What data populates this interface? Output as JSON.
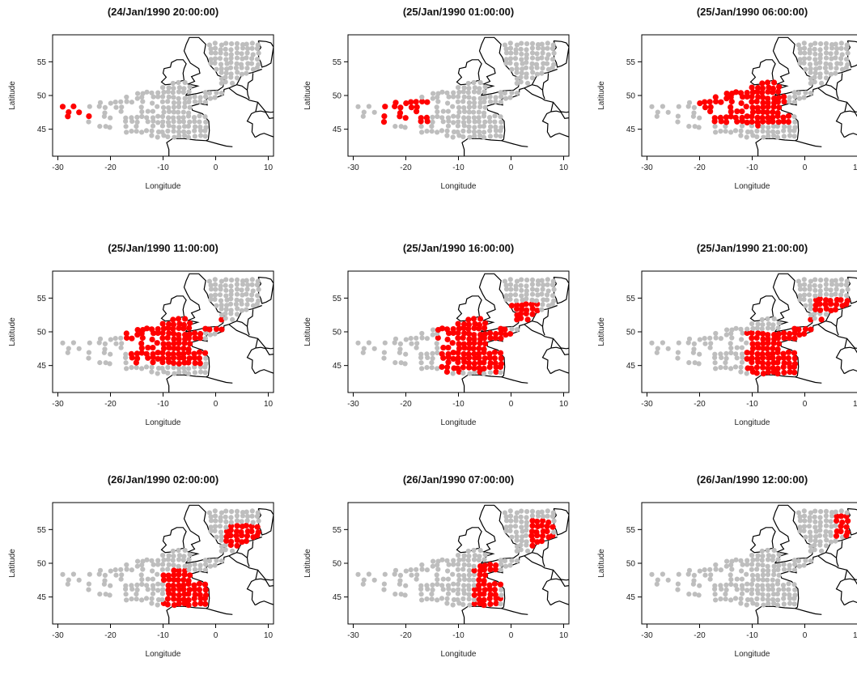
{
  "chart_data": {
    "type": "scatter",
    "layout_grid": "3x3",
    "xlabel": "Longitude",
    "ylabel": "Latitude",
    "xlim": [
      -31,
      11
    ],
    "ylim": [
      41,
      59
    ],
    "xticks": [
      -30,
      -20,
      -10,
      0,
      10
    ],
    "yticks": [
      45,
      50,
      55
    ],
    "colors": {
      "background_points": "#bebebe",
      "active_points": "#ff0000",
      "coastline": "#000000"
    },
    "panels": [
      {
        "title": "(24/Jan/1990 20:00:00)",
        "active_regions": [
          {
            "lon": [
              -30,
              -24
            ],
            "lat": [
              46.5,
              48.5
            ]
          }
        ]
      },
      {
        "title": "(25/Jan/1990 01:00:00)",
        "active_regions": [
          {
            "lon": [
              -25,
              -15
            ],
            "lat": [
              45.5,
              49.5
            ]
          }
        ]
      },
      {
        "title": "(25/Jan/1990 06:00:00)",
        "active_regions": [
          {
            "lon": [
              -20,
              -3
            ],
            "lat": [
              45.5,
              52
            ]
          }
        ]
      },
      {
        "title": "(25/Jan/1990 11:00:00)",
        "active_regions": [
          {
            "lon": [
              -17,
              -2
            ],
            "lat": [
              45,
              53
            ]
          },
          {
            "lon": [
              -2,
              2
            ],
            "lat": [
              50,
              52
            ]
          }
        ]
      },
      {
        "title": "(25/Jan/1990 16:00:00)",
        "active_regions": [
          {
            "lon": [
              -14,
              0
            ],
            "lat": [
              44,
              52
            ]
          },
          {
            "lon": [
              0,
              5
            ],
            "lat": [
              51,
              54.5
            ]
          }
        ]
      },
      {
        "title": "(25/Jan/1990 21:00:00)",
        "active_regions": [
          {
            "lon": [
              -11,
              0
            ],
            "lat": [
              43.5,
              50
            ]
          },
          {
            "lon": [
              -2,
              5
            ],
            "lat": [
              48,
              52
            ]
          },
          {
            "lon": [
              2,
              10
            ],
            "lat": [
              53,
              55
            ]
          }
        ]
      },
      {
        "title": "(26/Jan/1990 02:00:00)",
        "active_regions": [
          {
            "lon": [
              -10,
              -1
            ],
            "lat": [
              43.5,
              49
            ]
          },
          {
            "lon": [
              2,
              9
            ],
            "lat": [
              52,
              56
            ]
          }
        ]
      },
      {
        "title": "(26/Jan/1990 07:00:00)",
        "active_regions": [
          {
            "lon": [
              -7,
              -2
            ],
            "lat": [
              43.5,
              50
            ]
          },
          {
            "lon": [
              3,
              8
            ],
            "lat": [
              52.5,
              56.5
            ]
          }
        ]
      },
      {
        "title": "(26/Jan/1990 12:00:00)",
        "active_regions": [
          {
            "lon": [
              6,
              10
            ],
            "lat": [
              54,
              57
            ]
          }
        ]
      }
    ]
  }
}
